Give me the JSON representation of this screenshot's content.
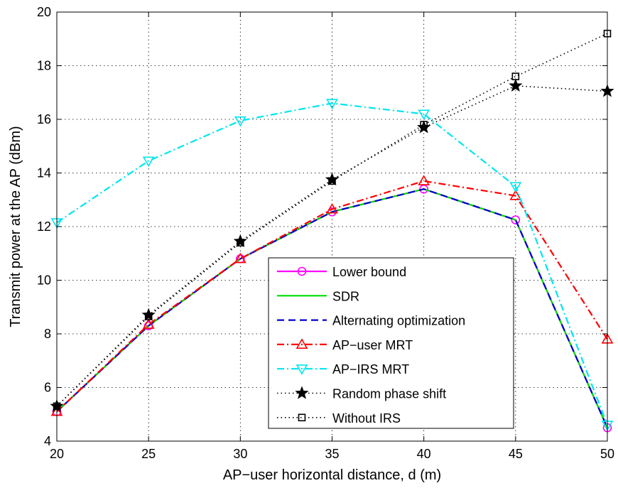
{
  "chart_data": {
    "type": "line",
    "title": "",
    "xlabel": "AP−user horizontal distance, d (m)",
    "ylabel": "Transmit power at the AP (dBm)",
    "xlim": [
      20,
      50
    ],
    "ylim": [
      4,
      20
    ],
    "xticks": [
      "20",
      "25",
      "30",
      "35",
      "40",
      "45",
      "50"
    ],
    "yticks": [
      "4",
      "6",
      "8",
      "10",
      "12",
      "14",
      "16",
      "18",
      "20"
    ],
    "grid": true,
    "legend_position": "bottom-right",
    "x": [
      20,
      25,
      30,
      35,
      40,
      45,
      50
    ],
    "series": [
      {
        "name": "Lower bound",
        "color": "#ff00ff",
        "dash": "solid",
        "marker": "circle",
        "values": [
          5.1,
          8.3,
          10.8,
          12.55,
          13.4,
          12.25,
          4.5
        ]
      },
      {
        "name": "SDR",
        "color": "#00dd00",
        "dash": "solid",
        "marker": "none",
        "values": [
          5.1,
          8.3,
          10.8,
          12.55,
          13.4,
          12.25,
          4.5
        ]
      },
      {
        "name": "Alternating optimization",
        "color": "#0000cc",
        "dash": "dashed",
        "marker": "none",
        "values": [
          5.1,
          8.3,
          10.8,
          12.55,
          13.4,
          12.25,
          4.5
        ]
      },
      {
        "name": "AP−user MRT",
        "color": "#ff0000",
        "dash": "dashdot",
        "marker": "triangle-up",
        "values": [
          5.1,
          8.35,
          10.8,
          12.65,
          13.7,
          13.15,
          7.8
        ]
      },
      {
        "name": "AP−IRS MRT",
        "color": "#00e5ee",
        "dash": "dashdot",
        "marker": "triangle-down",
        "values": [
          12.15,
          14.45,
          15.95,
          16.6,
          16.2,
          13.5,
          4.6
        ]
      },
      {
        "name": "Random phase shift",
        "color": "#000000",
        "dash": "dotted",
        "marker": "star",
        "values": [
          5.3,
          8.7,
          11.45,
          13.75,
          15.7,
          17.25,
          17.05
        ]
      },
      {
        "name": "Without IRS",
        "color": "#000000",
        "dash": "dotted",
        "marker": "square",
        "values": [
          5.3,
          8.65,
          11.4,
          13.7,
          15.8,
          17.6,
          19.2
        ]
      }
    ]
  }
}
